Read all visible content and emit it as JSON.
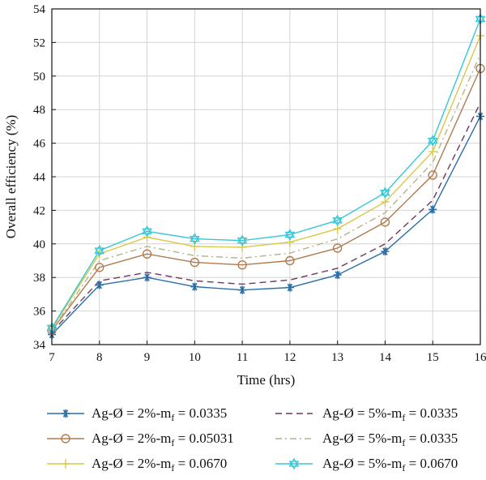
{
  "chart_data": {
    "type": "line",
    "title": "",
    "xlabel": "Time (hrs)",
    "ylabel": "Overall efficiency (%)",
    "xlim": [
      7,
      16
    ],
    "ylim": [
      34,
      54
    ],
    "x": [
      7,
      8,
      9,
      10,
      11,
      12,
      13,
      14,
      15,
      16
    ],
    "x_ticks": [
      "7",
      "8",
      "9",
      "10",
      "11",
      "12",
      "13",
      "14",
      "15",
      "16"
    ],
    "y_ticks": [
      "34",
      "36",
      "38",
      "40",
      "42",
      "44",
      "46",
      "48",
      "50",
      "52",
      "54"
    ],
    "grid": true,
    "legend_position": "bottom",
    "series": [
      {
        "name": "Ag-Ø = 2%-m",
        "sub": "f",
        "suffix": " = 0.0335",
        "color": "#2a6ea8",
        "dash": "",
        "marker": "star",
        "values": [
          34.6,
          37.55,
          38.0,
          37.45,
          37.25,
          37.4,
          38.15,
          39.55,
          42.05,
          47.6
        ]
      },
      {
        "name": "Ag-Ø = 2%-m",
        "sub": "f",
        "suffix": " = 0.05031",
        "color": "#b07c4f",
        "dash": "",
        "marker": "circle",
        "values": [
          34.85,
          38.6,
          39.4,
          38.9,
          38.75,
          39.0,
          39.75,
          41.3,
          44.1,
          50.45
        ]
      },
      {
        "name": "Ag-Ø = 2%-m",
        "sub": "f",
        "suffix": " = 0.0670",
        "color": "#d9c84a",
        "dash": "",
        "marker": "plus",
        "values": [
          34.95,
          39.4,
          40.4,
          39.85,
          39.8,
          40.1,
          40.9,
          42.5,
          45.5,
          52.4
        ]
      },
      {
        "name": "Ag-Ø = 5%-m",
        "sub": "f",
        "suffix": " = 0.0335",
        "color": "#6b3a60",
        "dash": "8,5",
        "marker": "none",
        "values": [
          34.75,
          37.8,
          38.3,
          37.8,
          37.6,
          37.85,
          38.55,
          40.0,
          42.6,
          48.4
        ]
      },
      {
        "name": "Ag-Ø = 5%-m",
        "sub": "f",
        "suffix": " = 0.0335",
        "color": "#b4b48a",
        "dash": "8,4,2,4",
        "marker": "none",
        "values": [
          34.85,
          39.0,
          39.85,
          39.3,
          39.15,
          39.45,
          40.3,
          41.85,
          44.85,
          51.3
        ]
      },
      {
        "name": "Ag-Ø = 5%-m",
        "sub": "f",
        "suffix": " = 0.0670",
        "color": "#38c6d6",
        "dash": "",
        "marker": "hexagram",
        "values": [
          35.0,
          39.6,
          40.75,
          40.3,
          40.2,
          40.55,
          41.4,
          43.05,
          46.15,
          53.4
        ]
      }
    ]
  }
}
